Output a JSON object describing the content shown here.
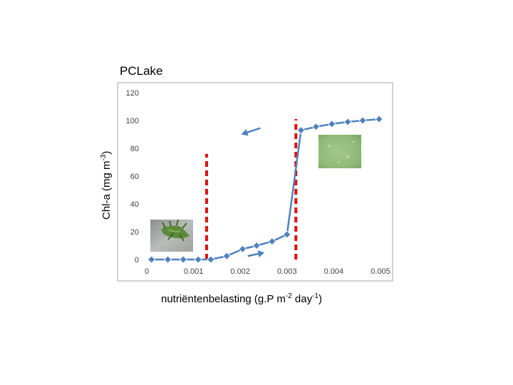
{
  "chart_data": {
    "type": "line",
    "title": "PCLake",
    "xlabel": {
      "base": "nutriëntenbelasting (g.P m",
      "sup1": "-2",
      "mid": " day",
      "sup2": "-1",
      "end": ")"
    },
    "ylabel": {
      "base": "Chl-a (mg m",
      "sup": "-3",
      "end": ")"
    },
    "xlim": [
      0,
      0.005
    ],
    "ylim": [
      0,
      120
    ],
    "x_ticks": [
      "0",
      "0.001",
      "0.002",
      "0.003",
      "0.004",
      "0.005"
    ],
    "y_ticks": [
      "0",
      "20",
      "40",
      "60",
      "80",
      "100",
      "120"
    ],
    "grid": false,
    "series": [
      {
        "values": [
          [
            0.0001,
            0
          ],
          [
            0.00045,
            0
          ],
          [
            0.00078,
            0
          ],
          [
            0.0011,
            0
          ],
          [
            0.00137,
            0
          ],
          [
            0.00171,
            2.5
          ],
          [
            0.00205,
            7.5
          ],
          [
            0.00235,
            10
          ],
          [
            0.00268,
            13
          ],
          [
            0.003,
            18
          ],
          [
            0.0033,
            93
          ],
          [
            0.00362,
            95.5
          ],
          [
            0.00396,
            97.5
          ],
          [
            0.0043,
            99
          ],
          [
            0.00462,
            100
          ],
          [
            0.00497,
            101
          ]
        ],
        "color": "#4f81bd"
      }
    ],
    "thresholds": [
      {
        "x": 0.00128,
        "y_range": [
          0,
          76
        ]
      },
      {
        "x": 0.00319,
        "y_range": [
          0,
          101
        ]
      }
    ],
    "threshold_color": "#e01010",
    "arrows": [
      {
        "from": [
          0.00243,
          94.5
        ],
        "to": [
          0.00202,
          90
        ],
        "meaning": "decreasing load"
      },
      {
        "from": [
          0.00216,
          2.5
        ],
        "to": [
          0.00252,
          5
        ],
        "meaning": "increasing load"
      }
    ],
    "arrow_color": "#4f81bd"
  },
  "photos": [
    {
      "name": "macrophyte-photo",
      "depicts": "clear water with aquatic plants"
    },
    {
      "name": "algae-photo",
      "depicts": "green turbid water"
    }
  ]
}
